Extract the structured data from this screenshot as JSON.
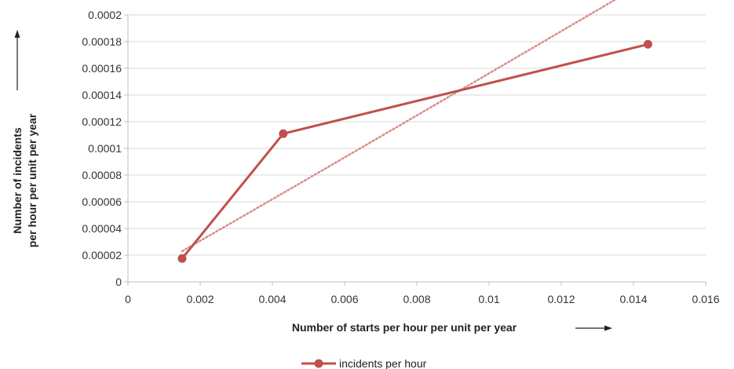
{
  "chart_data": {
    "type": "line",
    "xlabel": "Number of starts per hour per unit per year",
    "ylabel_lines": [
      "Number of  incidents",
      "per hour per unit per year"
    ],
    "xlim": [
      0,
      0.016
    ],
    "ylim": [
      0,
      0.0002
    ],
    "x_ticks": [
      "0",
      "0.002",
      "0.004",
      "0.006",
      "0.008",
      "0.01",
      "0.012",
      "0.014",
      "0.016"
    ],
    "y_ticks": [
      "0",
      "0.00002",
      "0.00004",
      "0.00006",
      "0.00008",
      "0.0001",
      "0.00012",
      "0.00014",
      "0.00016",
      "0.00018",
      "0.0002"
    ],
    "grid": "horizontal",
    "legend_position": "bottom",
    "series": [
      {
        "name": "incidents per hour",
        "color": "#c0504d",
        "marker": "circle",
        "points": [
          {
            "x": 0.0015,
            "y": 1.75e-05
          },
          {
            "x": 0.0043,
            "y": 0.000111
          },
          {
            "x": 0.0144,
            "y": 0.000178
          }
        ]
      }
    ],
    "trendline": {
      "type": "power",
      "style": "dotted",
      "color": "#d98c8a",
      "x_range": [
        0.0015,
        0.0144
      ]
    }
  }
}
